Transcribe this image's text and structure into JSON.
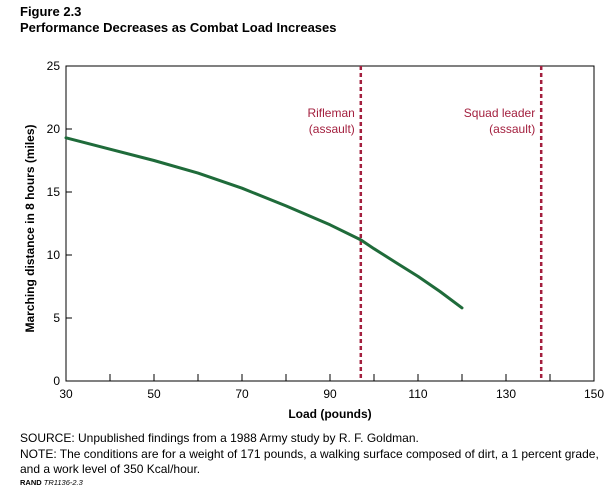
{
  "figure": {
    "label": "Figure 2.3",
    "title": "Performance Decreases as Combat Load Increases"
  },
  "chart_data": {
    "type": "line",
    "xlabel": "Load (pounds)",
    "ylabel": "Marching distance in 8 hours (miles)",
    "xlim": [
      30,
      150
    ],
    "ylim": [
      0,
      25
    ],
    "x_ticks": [
      30,
      50,
      70,
      90,
      110,
      130,
      150
    ],
    "y_ticks": [
      0,
      5,
      10,
      15,
      20,
      25
    ],
    "grid": false,
    "series": [
      {
        "x": [
          30,
          40,
          50,
          60,
          70,
          80,
          90,
          97,
          100,
          105,
          110,
          115,
          120
        ],
        "y": [
          19.3,
          18.4,
          17.5,
          16.5,
          15.3,
          13.9,
          12.4,
          11.2,
          10.5,
          9.4,
          8.3,
          7.1,
          5.8
        ],
        "color": "#1f6b3a"
      }
    ],
    "reference_lines": [
      {
        "x": 97,
        "label_line1": "Rifleman",
        "label_line2": "(assault)",
        "color": "#a31f3e"
      },
      {
        "x": 138,
        "label_line1": "Squad leader",
        "label_line2": "(assault)",
        "color": "#a31f3e"
      }
    ]
  },
  "footer": {
    "source": "SOURCE: Unpublished findings from a 1988 Army study by R. F. Goldman.",
    "note": "NOTE: The conditions are for a weight of 171 pounds, a walking surface composed of dirt, a 1 percent grade, and a work level of 350 Kcal/hour.",
    "rand_prefix": "RAND",
    "rand_id": "TR1136-2.3"
  }
}
